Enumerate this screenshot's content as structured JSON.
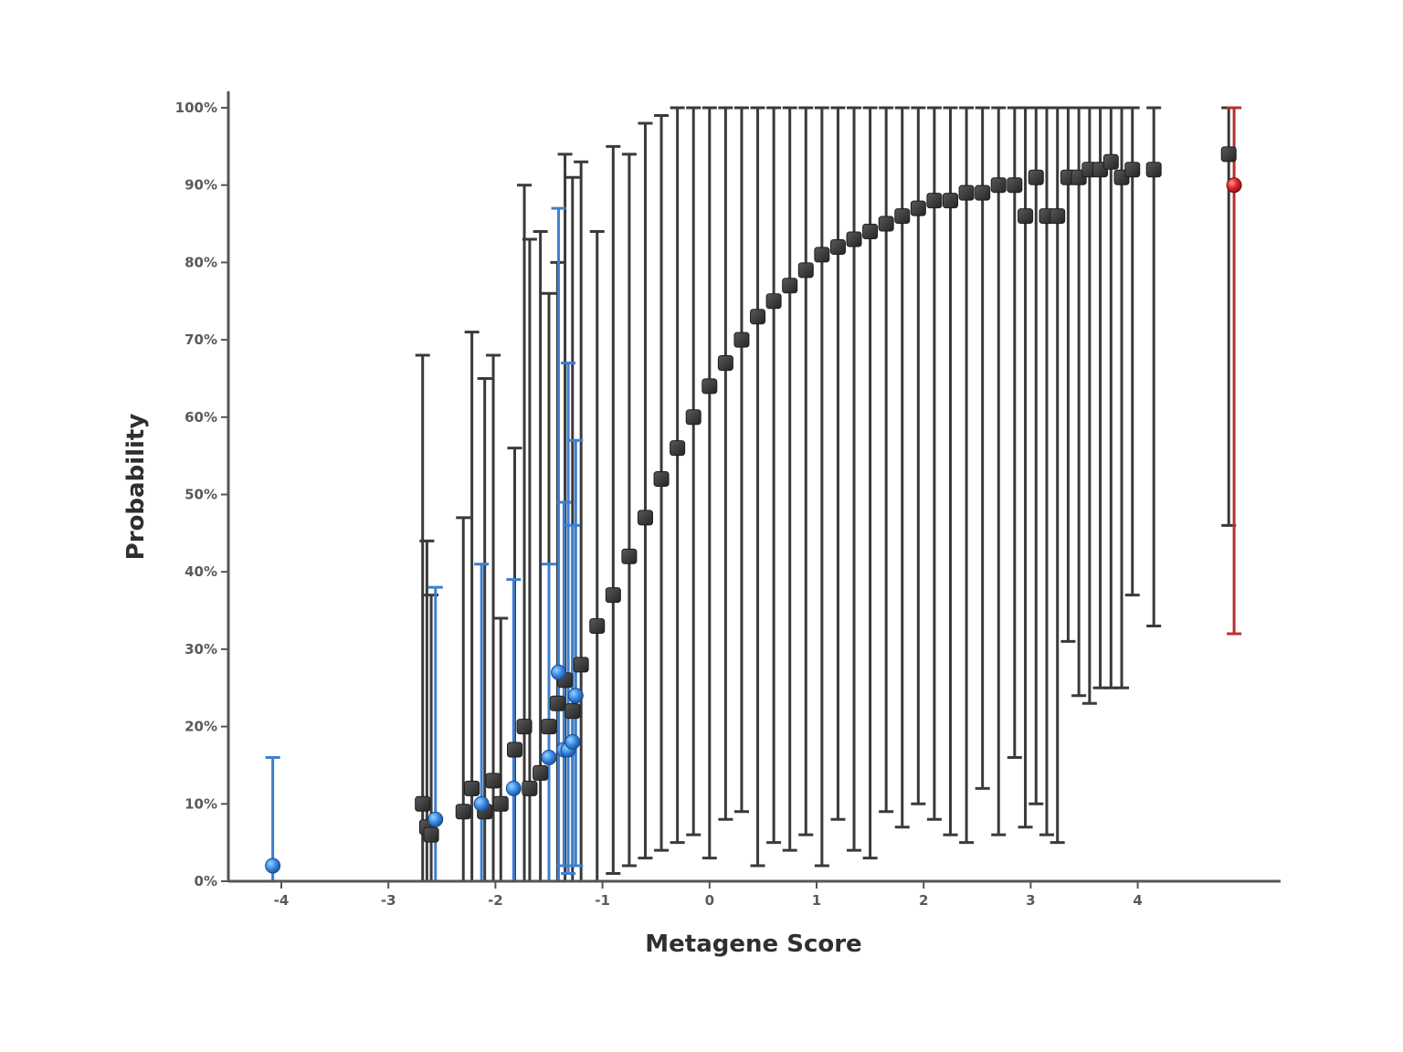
{
  "chart_data": {
    "type": "scatter",
    "title": "",
    "xlabel": "Metagene Score",
    "ylabel": "Probability",
    "xlim": [
      -4.6,
      5.3
    ],
    "ylim": [
      0,
      1
    ],
    "x_ticks": [
      -4,
      -3,
      -2,
      -1,
      0,
      1,
      2,
      3,
      4
    ],
    "x_tick_labels": [
      "-4",
      "-3",
      "-2",
      "-1",
      "0",
      "1",
      "2",
      "3",
      "4"
    ],
    "y_ticks": [
      0,
      0.1,
      0.2,
      0.3,
      0.4,
      0.5,
      0.6,
      0.7,
      0.8,
      0.9,
      1.0
    ],
    "y_tick_labels": [
      "0%",
      "10%",
      "20%",
      "30%",
      "40%",
      "50%",
      "60%",
      "70%",
      "80%",
      "90%",
      "100%"
    ],
    "grid": false,
    "legend": "none",
    "colors": {
      "black_series": "#3a3a3a",
      "blue_series": "#3a8fe6",
      "blue_errorbar": "#3f7fcf",
      "red_series": "#e0262b",
      "red_errorbar": "#b83030",
      "axis": "#555555"
    },
    "series": [
      {
        "marker": "square",
        "color": "#3a3a3a",
        "points": [
          {
            "x": -2.68,
            "y": 0.1,
            "lo": 0.0,
            "hi": 0.68
          },
          {
            "x": -2.64,
            "y": 0.07,
            "lo": 0.0,
            "hi": 0.44
          },
          {
            "x": -2.6,
            "y": 0.06,
            "lo": 0.0,
            "hi": 0.37
          },
          {
            "x": -2.3,
            "y": 0.09,
            "lo": 0.0,
            "hi": 0.47
          },
          {
            "x": -2.22,
            "y": 0.12,
            "lo": 0.0,
            "hi": 0.71
          },
          {
            "x": -2.1,
            "y": 0.09,
            "lo": 0.0,
            "hi": 0.65
          },
          {
            "x": -2.02,
            "y": 0.13,
            "lo": 0.0,
            "hi": 0.68
          },
          {
            "x": -1.95,
            "y": 0.1,
            "lo": 0.0,
            "hi": 0.34
          },
          {
            "x": -1.82,
            "y": 0.17,
            "lo": 0.0,
            "hi": 0.56
          },
          {
            "x": -1.73,
            "y": 0.2,
            "lo": 0.0,
            "hi": 0.9
          },
          {
            "x": -1.68,
            "y": 0.12,
            "lo": 0.0,
            "hi": 0.83
          },
          {
            "x": -1.58,
            "y": 0.14,
            "lo": 0.0,
            "hi": 0.84
          },
          {
            "x": -1.5,
            "y": 0.2,
            "lo": 0.0,
            "hi": 0.76
          },
          {
            "x": -1.42,
            "y": 0.23,
            "lo": 0.0,
            "hi": 0.8
          },
          {
            "x": -1.35,
            "y": 0.26,
            "lo": 0.0,
            "hi": 0.94
          },
          {
            "x": -1.28,
            "y": 0.22,
            "lo": 0.0,
            "hi": 0.91
          },
          {
            "x": -1.2,
            "y": 0.28,
            "lo": 0.0,
            "hi": 0.93
          },
          {
            "x": -1.05,
            "y": 0.33,
            "lo": 0.0,
            "hi": 0.84
          },
          {
            "x": -0.9,
            "y": 0.37,
            "lo": 0.01,
            "hi": 0.95
          },
          {
            "x": -0.75,
            "y": 0.42,
            "lo": 0.02,
            "hi": 0.94
          },
          {
            "x": -0.6,
            "y": 0.47,
            "lo": 0.03,
            "hi": 0.98
          },
          {
            "x": -0.45,
            "y": 0.52,
            "lo": 0.04,
            "hi": 0.99
          },
          {
            "x": -0.3,
            "y": 0.56,
            "lo": 0.05,
            "hi": 1.0
          },
          {
            "x": -0.15,
            "y": 0.6,
            "lo": 0.06,
            "hi": 1.0
          },
          {
            "x": 0.0,
            "y": 0.64,
            "lo": 0.03,
            "hi": 1.0
          },
          {
            "x": 0.15,
            "y": 0.67,
            "lo": 0.08,
            "hi": 1.0
          },
          {
            "x": 0.3,
            "y": 0.7,
            "lo": 0.09,
            "hi": 1.0
          },
          {
            "x": 0.45,
            "y": 0.73,
            "lo": 0.02,
            "hi": 1.0
          },
          {
            "x": 0.6,
            "y": 0.75,
            "lo": 0.05,
            "hi": 1.0
          },
          {
            "x": 0.75,
            "y": 0.77,
            "lo": 0.04,
            "hi": 1.0
          },
          {
            "x": 0.9,
            "y": 0.79,
            "lo": 0.06,
            "hi": 1.0
          },
          {
            "x": 1.05,
            "y": 0.81,
            "lo": 0.02,
            "hi": 1.0
          },
          {
            "x": 1.2,
            "y": 0.82,
            "lo": 0.08,
            "hi": 1.0
          },
          {
            "x": 1.35,
            "y": 0.83,
            "lo": 0.04,
            "hi": 1.0
          },
          {
            "x": 1.5,
            "y": 0.84,
            "lo": 0.03,
            "hi": 1.0
          },
          {
            "x": 1.65,
            "y": 0.85,
            "lo": 0.09,
            "hi": 1.0
          },
          {
            "x": 1.8,
            "y": 0.86,
            "lo": 0.07,
            "hi": 1.0
          },
          {
            "x": 1.95,
            "y": 0.87,
            "lo": 0.1,
            "hi": 1.0
          },
          {
            "x": 2.1,
            "y": 0.88,
            "lo": 0.08,
            "hi": 1.0
          },
          {
            "x": 2.25,
            "y": 0.88,
            "lo": 0.06,
            "hi": 1.0
          },
          {
            "x": 2.4,
            "y": 0.89,
            "lo": 0.05,
            "hi": 1.0
          },
          {
            "x": 2.55,
            "y": 0.89,
            "lo": 0.12,
            "hi": 1.0
          },
          {
            "x": 2.7,
            "y": 0.9,
            "lo": 0.06,
            "hi": 1.0
          },
          {
            "x": 2.85,
            "y": 0.9,
            "lo": 0.16,
            "hi": 1.0
          },
          {
            "x": 2.95,
            "y": 0.86,
            "lo": 0.07,
            "hi": 1.0
          },
          {
            "x": 3.05,
            "y": 0.91,
            "lo": 0.1,
            "hi": 1.0
          },
          {
            "x": 3.15,
            "y": 0.86,
            "lo": 0.06,
            "hi": 1.0
          },
          {
            "x": 3.25,
            "y": 0.86,
            "lo": 0.05,
            "hi": 1.0
          },
          {
            "x": 3.35,
            "y": 0.91,
            "lo": 0.31,
            "hi": 1.0
          },
          {
            "x": 3.45,
            "y": 0.91,
            "lo": 0.24,
            "hi": 1.0
          },
          {
            "x": 3.55,
            "y": 0.92,
            "lo": 0.23,
            "hi": 1.0
          },
          {
            "x": 3.65,
            "y": 0.92,
            "lo": 0.25,
            "hi": 1.0
          },
          {
            "x": 3.75,
            "y": 0.93,
            "lo": 0.25,
            "hi": 1.0
          },
          {
            "x": 3.85,
            "y": 0.91,
            "lo": 0.25,
            "hi": 1.0
          },
          {
            "x": 3.95,
            "y": 0.92,
            "lo": 0.37,
            "hi": 1.0
          },
          {
            "x": 4.15,
            "y": 0.92,
            "lo": 0.33,
            "hi": 1.0
          },
          {
            "x": 4.85,
            "y": 0.94,
            "lo": 0.46,
            "hi": 1.0
          }
        ]
      },
      {
        "marker": "circle",
        "color": "#3a8fe6",
        "points": [
          {
            "x": -4.08,
            "y": 0.02,
            "lo": 0.0,
            "hi": 0.16
          },
          {
            "x": -2.56,
            "y": 0.08,
            "lo": 0.0,
            "hi": 0.38
          },
          {
            "x": -2.13,
            "y": 0.1,
            "lo": 0.0,
            "hi": 0.41
          },
          {
            "x": -1.83,
            "y": 0.12,
            "lo": 0.0,
            "hi": 0.39
          },
          {
            "x": -1.5,
            "y": 0.16,
            "lo": 0.0,
            "hi": 0.41
          },
          {
            "x": -1.41,
            "y": 0.27,
            "lo": 0.0,
            "hi": 0.87
          },
          {
            "x": -1.36,
            "y": 0.17,
            "lo": 0.02,
            "hi": 0.49
          },
          {
            "x": -1.32,
            "y": 0.17,
            "lo": 0.01,
            "hi": 0.67
          },
          {
            "x": -1.28,
            "y": 0.18,
            "lo": 0.02,
            "hi": 0.46
          },
          {
            "x": -1.25,
            "y": 0.24,
            "lo": 0.02,
            "hi": 0.57
          }
        ]
      },
      {
        "marker": "circle",
        "color": "#e0262b",
        "points": [
          {
            "x": 4.9,
            "y": 0.9,
            "lo": 0.32,
            "hi": 1.0
          }
        ]
      }
    ]
  }
}
